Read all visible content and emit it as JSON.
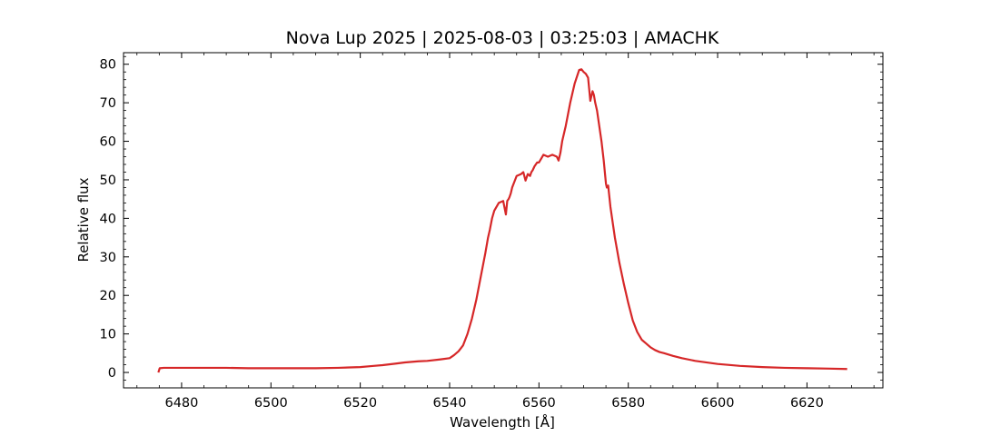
{
  "chart_data": {
    "type": "line",
    "title": "Nova Lup 2025 | 2025-08-03 | 03:25:03 | AMACHK",
    "xlabel": "Wavelength [Å]",
    "ylabel": "Relative flux",
    "xlim": [
      6467,
      6637
    ],
    "ylim": [
      -4,
      83
    ],
    "xticks": [
      6480,
      6500,
      6520,
      6540,
      6560,
      6580,
      6600,
      6620
    ],
    "yticks": [
      0,
      10,
      20,
      30,
      40,
      50,
      60,
      70,
      80
    ],
    "grid": false,
    "legend": "none",
    "series": [
      {
        "color": "#d62728",
        "x": [
          6474.8,
          6475.1,
          6476,
          6480,
          6485,
          6490,
          6495,
          6500,
          6505,
          6510,
          6515,
          6520,
          6523,
          6525,
          6528,
          6530,
          6533,
          6535,
          6538,
          6540,
          6541,
          6542,
          6543,
          6544,
          6545,
          6546,
          6547,
          6548,
          6548.6,
          6549,
          6549.5,
          6550,
          6551,
          6552,
          6552.6,
          6552.9,
          6553.2,
          6553.4,
          6553.7,
          6554,
          6554.5,
          6555,
          6556,
          6556.5,
          6557,
          6557.5,
          6558,
          6558.3,
          6558.6,
          6559,
          6559.6,
          6560,
          6560.5,
          6561,
          6562,
          6563,
          6564,
          6564.4,
          6564.8,
          6565.2,
          6566,
          6567,
          6568,
          6569,
          6569.5,
          6570,
          6570.5,
          6571,
          6571.5,
          6572,
          6572.3,
          6572.6,
          6573,
          6574,
          6574.5,
          6575,
          6575.2,
          6575.5,
          6576,
          6577,
          6578,
          6579,
          6580,
          6581,
          6582,
          6583,
          6584,
          6585,
          6586,
          6587,
          6588,
          6590,
          6592,
          6595,
          6600,
          6605,
          6610,
          6615,
          6620,
          6625,
          6629
        ],
        "y": [
          0,
          1.1,
          1.2,
          1.2,
          1.2,
          1.2,
          1.1,
          1.1,
          1.1,
          1.1,
          1.2,
          1.4,
          1.7,
          1.9,
          2.3,
          2.6,
          2.9,
          3.0,
          3.4,
          3.7,
          4.5,
          5.5,
          7.0,
          10,
          14,
          19,
          25,
          31,
          35,
          37,
          40,
          42,
          44,
          44.5,
          41,
          44.5,
          45,
          45.5,
          46.5,
          48,
          49.5,
          51,
          51.5,
          52,
          49.8,
          51.5,
          51,
          52,
          52.5,
          53.5,
          54.5,
          54.5,
          55.5,
          56.5,
          56,
          56.5,
          56,
          55,
          57,
          60,
          64,
          70,
          75,
          78.5,
          78.7,
          78,
          77.5,
          76.5,
          70.5,
          73,
          72,
          70,
          68,
          60,
          55,
          49,
          48,
          48.5,
          43,
          35,
          28.5,
          23,
          18,
          13.5,
          10.5,
          8.5,
          7.5,
          6.5,
          5.8,
          5.3,
          5.0,
          4.3,
          3.7,
          3.0,
          2.2,
          1.7,
          1.4,
          1.2,
          1.1,
          1.0,
          0.9
        ]
      }
    ]
  }
}
